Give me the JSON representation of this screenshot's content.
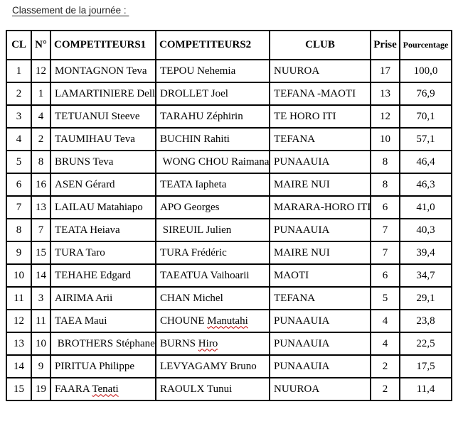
{
  "page_title": "Classement de la journée : ",
  "table": {
    "columns": [
      "CL",
      "N°",
      "COMPETITEURS1",
      "COMPETITEURS2",
      "CLUB",
      "Prise",
      "Pourcentage"
    ],
    "rows": [
      [
        "1",
        "12",
        "MONTAGNON Teva",
        "TEPOU Nehemia",
        "NUUROA",
        "17",
        "100,0"
      ],
      [
        "2",
        "1",
        "LAMARTINIERE Dell",
        "DROLLET Joel",
        "TEFANA -MAOTI",
        "13",
        "76,9"
      ],
      [
        "3",
        "4",
        "TETUANUI Steeve",
        "TARAHU Zéphirin",
        "TE HORO ITI",
        "12",
        "70,1"
      ],
      [
        "4",
        "2",
        "TAUMIHAU Teva",
        "BUCHIN Rahiti",
        "TEFANA",
        "10",
        "57,1"
      ],
      [
        "5",
        "8",
        "BRUNS Teva",
        " WONG CHOU Raimana",
        "PUNAAUIA",
        "8",
        "46,4"
      ],
      [
        "6",
        "16",
        "ASEN Gérard",
        "TEATA Iapheta",
        "MAIRE NUI",
        "8",
        "46,3"
      ],
      [
        "7",
        "13",
        "LAILAU Matahiapo",
        "APO Georges",
        "MARARA-HORO ITI",
        "6",
        "41,0"
      ],
      [
        "8",
        "7",
        "TEATA Heiava",
        " SIREUIL Julien",
        "PUNAAUIA",
        "7",
        "40,3"
      ],
      [
        "9",
        "15",
        "TURA Taro",
        "TURA Frédéric",
        "MAIRE NUI",
        "7",
        "39,4"
      ],
      [
        "10",
        "14",
        "TEHAHE Edgard",
        "TAEATUA Vaihoarii",
        "MAOTI",
        "6",
        "34,7"
      ],
      [
        "11",
        "3",
        "AIRIMA Arii",
        "CHAN Michel",
        "TEFANA",
        "5",
        "29,1"
      ],
      [
        "12",
        "11",
        "TAEA Maui",
        "CHOUNE Manutahi",
        "PUNAAUIA",
        "4",
        "23,8"
      ],
      [
        "13",
        "10",
        " BROTHERS Stéphane",
        "BURNS Hiro",
        "PUNAAUIA",
        "4",
        "22,5"
      ],
      [
        "14",
        "9",
        "PIRITUA Philippe",
        "LEVYAGAMY Bruno",
        "PUNAAUIA",
        "2",
        "17,5"
      ],
      [
        "15",
        "19",
        "FAARA Tenati",
        "RAOULX Tunui",
        "NUUROA",
        "2",
        "11,4"
      ]
    ],
    "misspelled_words": [
      "Manutahi",
      "Hiro",
      "Tenati"
    ],
    "misspell_color": "#c00000"
  }
}
